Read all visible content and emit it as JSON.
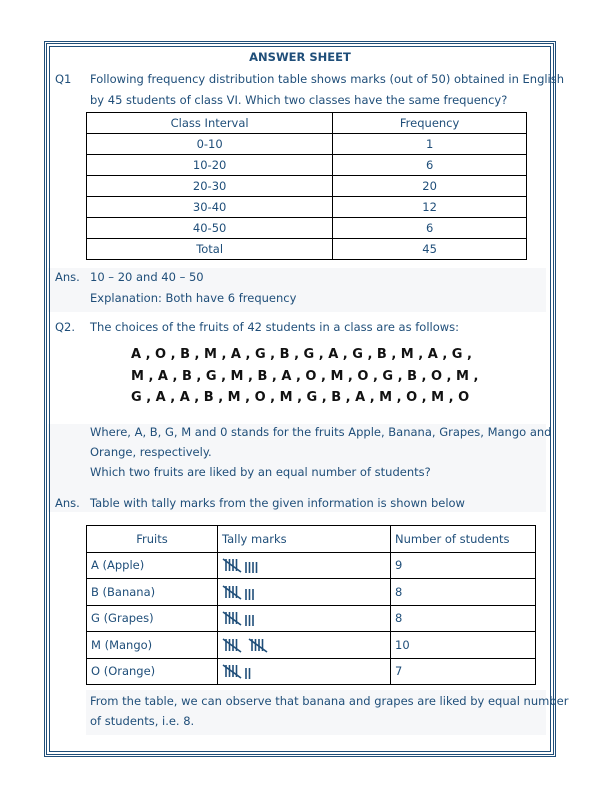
{
  "title": "ANSWER SHEET",
  "q1": {
    "label": "Q1",
    "line1": "Following frequency distribution table shows marks (out of 50) obtained in English",
    "line2": "by 45 students of class VI. Which two classes have the same frequency?",
    "headers": [
      "Class Interval",
      "Frequency"
    ],
    "rows": [
      [
        "0-10",
        "1"
      ],
      [
        "10-20",
        "6"
      ],
      [
        "20-30",
        "20"
      ],
      [
        "30-40",
        "12"
      ],
      [
        "40-50",
        "6"
      ],
      [
        "Total",
        "45"
      ]
    ]
  },
  "a1": {
    "label": "Ans.",
    "line1": "10 – 20 and 40 – 50",
    "line2": "Explanation: Both have 6 frequency"
  },
  "q2": {
    "label": "Q2.",
    "line1": "The choices of the fruits of 42 students in a class are as follows:",
    "letters": [
      "A , O , B , M , A , G , B , G , A , G , B , M , A , G ,",
      "M , A , B , G , M , B , A , O , M , O , G , B , O , M ,",
      "G , A , A , B , M , O , M , G , B , A , M , O , M , O"
    ],
    "line2": "Where, A, B, G, M and 0 stands for the fruits Apple, Banana, Grapes, Mango and",
    "line3": "Orange, respectively.",
    "line4": "Which two fruits are liked by an equal number of students?"
  },
  "a2": {
    "label": "Ans.",
    "intro": "Table with tally marks from the given information is shown below",
    "headers": [
      "Fruits",
      "Tally marks",
      "Number of students"
    ],
    "rows": [
      {
        "fruit": "A (Apple)",
        "count": "9",
        "tally": 9
      },
      {
        "fruit": "B (Banana)",
        "count": "8",
        "tally": 8
      },
      {
        "fruit": "G (Grapes)",
        "count": "8",
        "tally": 8
      },
      {
        "fruit": "M (Mango)",
        "count": "10",
        "tally": 10
      },
      {
        "fruit": "O (Orange)",
        "count": "7",
        "tally": 7
      }
    ],
    "concl1": "From the table, we can observe that banana and grapes are liked by equal number",
    "concl2": "of students, i.e. 8."
  },
  "colors": {
    "text": "#1f4e79",
    "border": "#1f4e79"
  }
}
